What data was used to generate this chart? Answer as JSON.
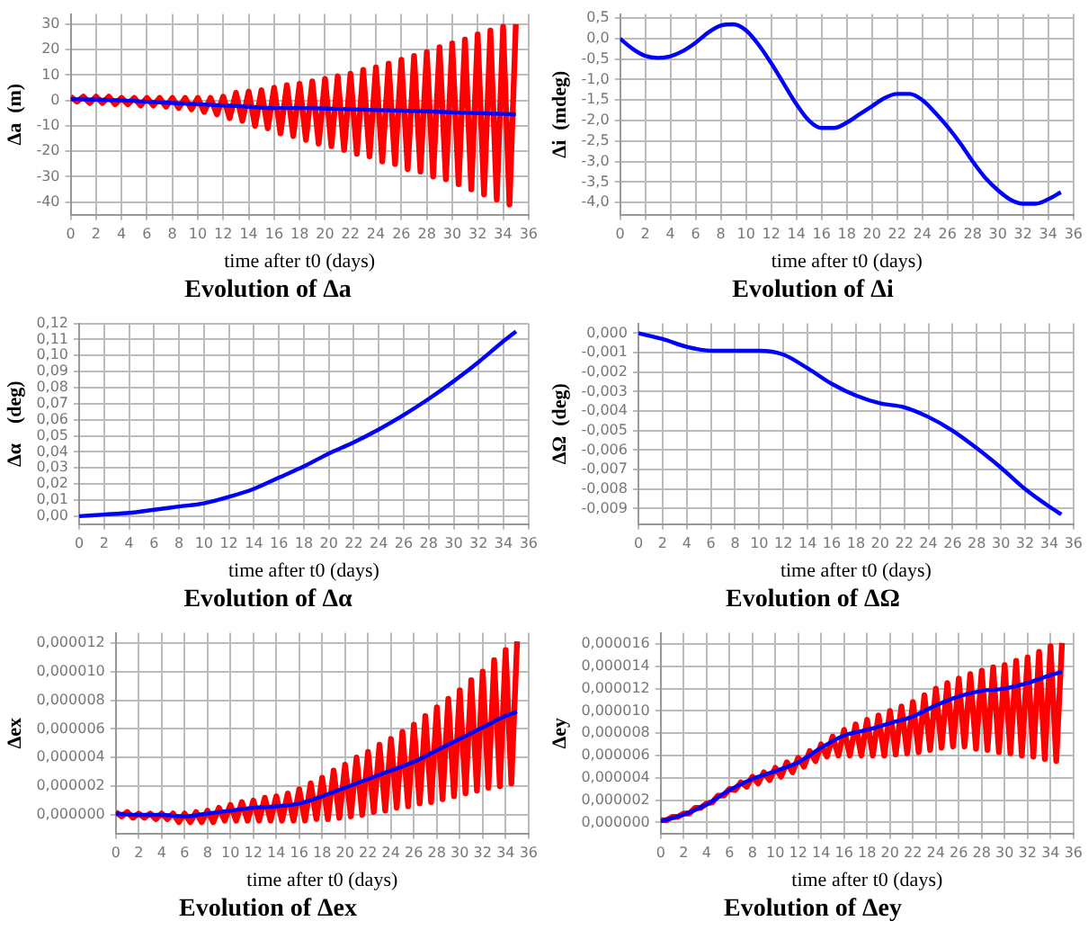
{
  "chart_data": [
    {
      "type": "line",
      "title": "Evolution of Δa",
      "xlabel": "time after t0 (days)",
      "ylabel": "Δa  (m)",
      "grid": true,
      "legend": false,
      "marker": "none",
      "x": [
        0,
        2,
        4,
        6,
        8,
        10,
        12,
        13,
        14,
        16,
        18,
        20,
        22,
        24,
        26,
        28,
        30,
        32,
        34,
        35
      ],
      "series": [
        {
          "color": "#0000ff",
          "values": [
            0.5,
            0.3,
            0,
            -0.5,
            -1,
            -1.5,
            -2,
            -2.2,
            -2.5,
            -3,
            -3,
            -3.2,
            -3.5,
            -3.8,
            -4,
            -4.3,
            -4.7,
            -5,
            -5.3,
            -5.5
          ]
        },
        {
          "color": "#ff0000",
          "x": [
            0,
            0.5,
            1,
            1.5,
            2,
            2.5,
            3,
            3.5,
            4,
            4.5,
            5,
            5.5,
            6,
            6.5,
            7,
            7.5,
            8,
            8.5,
            9,
            9.5,
            10,
            10.5,
            11,
            11.5,
            12,
            12.5,
            13,
            13.5,
            14,
            14.5,
            15,
            15.5,
            16,
            16.5,
            17,
            17.5,
            18,
            18.5,
            19,
            19.5,
            20,
            20.5,
            21,
            21.5,
            22,
            22.5,
            23,
            23.5,
            24,
            24.5,
            25,
            25.5,
            26,
            26.5,
            27,
            27.5,
            28,
            28.5,
            29,
            29.5,
            30,
            30.5,
            31,
            31.5,
            32,
            32.5,
            33,
            33.5,
            34,
            34.5,
            35
          ],
          "values": [
            1.5,
            -0.5,
            1.5,
            -1,
            1.5,
            -1,
            1.5,
            -1.5,
            1,
            -1.5,
            1,
            -2,
            1,
            -2,
            1,
            -2.5,
            1,
            -3,
            1,
            -3.5,
            1,
            -4.5,
            1,
            -5.5,
            1.5,
            -7,
            3,
            -8,
            3.5,
            -10,
            4,
            -11,
            5,
            -13,
            6,
            -14,
            6.5,
            -15.5,
            7.5,
            -17,
            8.5,
            -18,
            9.5,
            -19.5,
            10.5,
            -21,
            12,
            -22,
            13,
            -24,
            14.5,
            -25,
            16,
            -27,
            17.5,
            -28,
            19,
            -30,
            21,
            -31,
            22.5,
            -33,
            24,
            -35,
            26,
            -37,
            27.5,
            -39,
            29,
            -41,
            30
          ]
        }
      ],
      "xlim": [
        0,
        36
      ],
      "xticks": [
        0,
        2,
        4,
        6,
        8,
        10,
        12,
        14,
        16,
        18,
        20,
        22,
        24,
        26,
        28,
        30,
        32,
        34,
        36
      ],
      "ylim": [
        -45,
        34
      ],
      "yticks": [
        -40,
        -30,
        -20,
        -10,
        0,
        10,
        20,
        30
      ]
    },
    {
      "type": "line",
      "title": "Evolution of Δi",
      "xlabel": "time after t0 (days)",
      "ylabel": "Δi  (mdeg)",
      "grid": true,
      "legend": false,
      "marker": "none",
      "x": [
        0,
        1,
        2,
        3,
        4,
        5,
        6,
        7,
        8,
        9,
        10,
        11,
        12,
        13,
        14,
        15,
        16,
        17,
        18,
        19,
        20,
        21,
        22,
        23,
        24,
        25,
        26,
        27,
        28,
        29,
        30,
        31,
        32,
        33,
        34,
        35
      ],
      "series": [
        {
          "color": "#0000ff",
          "values": [
            0,
            -0.25,
            -0.42,
            -0.47,
            -0.43,
            -0.3,
            -0.1,
            0.15,
            0.32,
            0.35,
            0.2,
            -0.15,
            -0.6,
            -1.1,
            -1.6,
            -2.0,
            -2.18,
            -2.18,
            -2.05,
            -1.85,
            -1.65,
            -1.45,
            -1.35,
            -1.35,
            -1.5,
            -1.8,
            -2.15,
            -2.55,
            -3.0,
            -3.4,
            -3.7,
            -3.93,
            -4.03,
            -4.03,
            -3.92,
            -3.75
          ]
        }
      ],
      "xlim": [
        0,
        36
      ],
      "xticks": [
        0,
        2,
        4,
        6,
        8,
        10,
        12,
        14,
        16,
        18,
        20,
        22,
        24,
        26,
        28,
        30,
        32,
        34,
        36
      ],
      "ylim": [
        -4.3,
        0.6
      ],
      "yticks": [
        {
          "value": -4,
          "label": "-4,0"
        },
        {
          "value": -3.5,
          "label": "-3,5"
        },
        {
          "value": -3,
          "label": "-3,0"
        },
        {
          "value": -2.5,
          "label": "-2,5"
        },
        {
          "value": -2,
          "label": "-2,0"
        },
        {
          "value": -1.5,
          "label": "-1,5"
        },
        {
          "value": -1,
          "label": "-1,0"
        },
        {
          "value": -0.5,
          "label": "-0,5"
        },
        {
          "value": 0,
          "label": "0,0"
        },
        {
          "value": 0.5,
          "label": "0,5"
        }
      ]
    },
    {
      "type": "line",
      "title": "Evolution of Δα",
      "xlabel": "time after t0 (days)",
      "ylabel": "Δα    (deg)",
      "grid": true,
      "legend": false,
      "marker": "none",
      "x": [
        0,
        2,
        4,
        6,
        8,
        10,
        12,
        14,
        16,
        18,
        20,
        22,
        24,
        26,
        28,
        30,
        32,
        34,
        35
      ],
      "series": [
        {
          "color": "#0000ff",
          "values": [
            0,
            0.001,
            0.002,
            0.004,
            0.006,
            0.008,
            0.012,
            0.017,
            0.024,
            0.031,
            0.039,
            0.046,
            0.054,
            0.063,
            0.073,
            0.084,
            0.096,
            0.109,
            0.115
          ]
        }
      ],
      "xlim": [
        0,
        36
      ],
      "xticks": [
        0,
        2,
        4,
        6,
        8,
        10,
        12,
        14,
        16,
        18,
        20,
        22,
        24,
        26,
        28,
        30,
        32,
        34,
        36
      ],
      "ylim": [
        -0.005,
        0.12
      ],
      "yticks": [
        {
          "value": 0,
          "label": "0,00"
        },
        {
          "value": 0.01,
          "label": "0,01"
        },
        {
          "value": 0.02,
          "label": "0,02"
        },
        {
          "value": 0.03,
          "label": "0,03"
        },
        {
          "value": 0.04,
          "label": "0,04"
        },
        {
          "value": 0.05,
          "label": "0,05"
        },
        {
          "value": 0.06,
          "label": "0,06"
        },
        {
          "value": 0.07,
          "label": "0,07"
        },
        {
          "value": 0.08,
          "label": "0,08"
        },
        {
          "value": 0.09,
          "label": "0,09"
        },
        {
          "value": 0.1,
          "label": "0,10"
        },
        {
          "value": 0.11,
          "label": "0,11"
        },
        {
          "value": 0.12,
          "label": "0,12"
        }
      ]
    },
    {
      "type": "line",
      "title": "Evolution of ΔΩ",
      "xlabel": "time after t0 (days)",
      "ylabel": "ΔΩ  (deg)",
      "grid": true,
      "legend": false,
      "marker": "none",
      "x": [
        0,
        2,
        4,
        6,
        8,
        10,
        12,
        14,
        16,
        18,
        20,
        22,
        24,
        26,
        28,
        30,
        32,
        34,
        35
      ],
      "series": [
        {
          "color": "#0000ff",
          "values": [
            0,
            -0.0003,
            -0.0007,
            -0.0009,
            -0.0009,
            -0.0009,
            -0.0011,
            -0.0018,
            -0.0026,
            -0.0032,
            -0.0036,
            -0.0038,
            -0.0043,
            -0.005,
            -0.0059,
            -0.0069,
            -0.008,
            -0.0089,
            -0.0093
          ]
        }
      ],
      "xlim": [
        0,
        36
      ],
      "xticks": [
        0,
        2,
        4,
        6,
        8,
        10,
        12,
        14,
        16,
        18,
        20,
        22,
        24,
        26,
        28,
        30,
        32,
        34,
        36
      ],
      "ylim": [
        -0.0098,
        0.0005
      ],
      "yticks": [
        {
          "value": -0.009,
          "label": "-0,009"
        },
        {
          "value": -0.008,
          "label": "-0,008"
        },
        {
          "value": -0.007,
          "label": "-0,007"
        },
        {
          "value": -0.006,
          "label": "-0,006"
        },
        {
          "value": -0.005,
          "label": "-0,005"
        },
        {
          "value": -0.004,
          "label": "-0,004"
        },
        {
          "value": -0.003,
          "label": "-0,003"
        },
        {
          "value": -0.002,
          "label": "-0,002"
        },
        {
          "value": -0.001,
          "label": "-0,001"
        },
        {
          "value": 0,
          "label": "0,000"
        }
      ]
    },
    {
      "type": "line",
      "title": "Evolution of Δex",
      "xlabel": "time after t0 (days)",
      "ylabel": "Δex",
      "grid": true,
      "legend": false,
      "marker": "none",
      "x": [
        0,
        2,
        4,
        6,
        8,
        10,
        12,
        14,
        16,
        18,
        20,
        22,
        24,
        26,
        28,
        30,
        32,
        34,
        35
      ],
      "series": [
        {
          "color": "#0000ff",
          "values": [
            1e-07,
            0,
            0,
            -1e-07,
            1e-07,
            3e-07,
            5e-07,
            6e-07,
            8e-07,
            1.3e-06,
            1.9e-06,
            2.5e-06,
            3.1e-06,
            3.7e-06,
            4.5e-06,
            5.3e-06,
            6.1e-06,
            6.9e-06,
            7.2e-06
          ]
        },
        {
          "color": "#ff0000",
          "x": [
            0,
            0.5,
            1,
            1.5,
            2,
            2.5,
            3,
            3.5,
            4,
            4.5,
            5,
            5.5,
            6,
            6.5,
            7,
            7.5,
            8,
            8.5,
            9,
            9.5,
            10,
            10.5,
            11,
            11.5,
            12,
            12.5,
            13,
            13.5,
            14,
            14.5,
            15,
            15.5,
            16,
            16.5,
            17,
            17.5,
            18,
            18.5,
            19,
            19.5,
            20,
            20.5,
            21,
            21.5,
            22,
            22.5,
            23,
            23.5,
            24,
            24.5,
            25,
            25.5,
            26,
            26.5,
            27,
            27.5,
            28,
            28.5,
            29,
            29.5,
            30,
            30.5,
            31,
            31.5,
            32,
            32.5,
            33,
            33.5,
            34,
            34.5,
            35
          ],
          "values": [
            2e-07,
            -1e-07,
            2e-07,
            -2e-07,
            1e-07,
            -2e-07,
            1e-07,
            -3e-07,
            1e-07,
            -3e-07,
            1e-07,
            -5e-07,
            1e-07,
            -5e-07,
            2e-07,
            -5e-07,
            3e-07,
            -5e-07,
            5e-07,
            -4e-07,
            7e-07,
            -4e-07,
            9e-07,
            -4e-07,
            1e-06,
            -4e-07,
            1.2e-06,
            -4e-07,
            1.3e-06,
            -4e-07,
            1.5e-06,
            -4e-07,
            1.8e-06,
            -4e-07,
            2.2e-06,
            -3e-07,
            2.6e-06,
            -3e-07,
            3.1e-06,
            -2e-07,
            3.5e-06,
            -1e-07,
            4e-06,
            0,
            4.4e-06,
            2e-07,
            4.9e-06,
            3e-07,
            5.3e-06,
            5e-07,
            5.8e-06,
            6e-07,
            6.3e-06,
            8e-07,
            6.9e-06,
            9e-07,
            7.5e-06,
            1.1e-06,
            8.1e-06,
            1.3e-06,
            8.7e-06,
            1.5e-06,
            9.4e-06,
            1.7e-06,
            1e-05,
            1.9e-06,
            1.08e-05,
            2e-06,
            1.15e-05,
            2.2e-06,
            1.21e-05
          ]
        }
      ],
      "xlim": [
        0,
        36
      ],
      "xticks": [
        0,
        2,
        4,
        6,
        8,
        10,
        12,
        14,
        16,
        18,
        20,
        22,
        24,
        26,
        28,
        30,
        32,
        34,
        36
      ],
      "ylim": [
        -1.3e-06,
        1.27e-05
      ],
      "yticks": [
        {
          "value": 0,
          "label": "0,000000"
        },
        {
          "value": 2e-06,
          "label": "0,000002"
        },
        {
          "value": 4e-06,
          "label": "0,000004"
        },
        {
          "value": 6e-06,
          "label": "0,000006"
        },
        {
          "value": 8e-06,
          "label": "0,000008"
        },
        {
          "value": 1e-05,
          "label": "0,000010"
        },
        {
          "value": 1.2e-05,
          "label": "0,000012"
        }
      ]
    },
    {
      "type": "line",
      "title": "Evolution of Δey",
      "xlabel": "time after t0 (days)",
      "ylabel": "Δey",
      "grid": true,
      "legend": false,
      "marker": "none",
      "x": [
        0,
        2,
        4,
        6,
        8,
        10,
        12,
        14,
        16,
        18,
        20,
        22,
        24,
        26,
        28,
        30,
        32,
        34,
        35
      ],
      "series": [
        {
          "color": "#0000ff",
          "values": [
            1e-07,
            7e-07,
            1.6e-06,
            2.9e-06,
            3.9e-06,
            4.6e-06,
            5.4e-06,
            6.7e-06,
            7.8e-06,
            8.3e-06,
            8.9e-06,
            9.5e-06,
            1.05e-05,
            1.13e-05,
            1.18e-05,
            1.2e-05,
            1.25e-05,
            1.32e-05,
            1.35e-05
          ]
        },
        {
          "color": "#ff0000",
          "x": [
            0,
            0.5,
            1,
            1.5,
            2,
            2.5,
            3,
            3.5,
            4,
            4.5,
            5,
            5.5,
            6,
            6.5,
            7,
            7.5,
            8,
            8.5,
            9,
            9.5,
            10,
            10.5,
            11,
            11.5,
            12,
            12.5,
            13,
            13.5,
            14,
            14.5,
            15,
            15.5,
            16,
            16.5,
            17,
            17.5,
            18,
            18.5,
            19,
            19.5,
            20,
            20.5,
            21,
            21.5,
            22,
            22.5,
            23,
            23.5,
            24,
            24.5,
            25,
            25.5,
            26,
            26.5,
            27,
            27.5,
            28,
            28.5,
            29,
            29.5,
            30,
            30.5,
            31,
            31.5,
            32,
            32.5,
            33,
            33.5,
            34,
            34.5,
            35
          ],
          "values": [
            2e-07,
            2e-07,
            5e-07,
            5e-07,
            8e-07,
            8e-07,
            1.3e-06,
            1.3e-06,
            1.7e-06,
            1.8e-06,
            2.4e-06,
            2.4e-06,
            3e-06,
            2.9e-06,
            3.6e-06,
            3.2e-06,
            4.1e-06,
            3.5e-06,
            4.5e-06,
            3.8e-06,
            4.9e-06,
            4.1e-06,
            5.4e-06,
            4.5e-06,
            5.8e-06,
            5e-06,
            6.4e-06,
            5.5e-06,
            7e-06,
            5.9e-06,
            7.7e-06,
            6e-06,
            8.3e-06,
            6e-06,
            8.8e-06,
            6e-06,
            9.2e-06,
            6e-06,
            9.6e-06,
            6e-06,
            1e-05,
            6.1e-06,
            1.04e-05,
            6.2e-06,
            1.08e-05,
            6.3e-06,
            1.14e-05,
            6.5e-06,
            1.2e-05,
            6.7e-06,
            1.25e-05,
            6.8e-06,
            1.29e-05,
            6.8e-06,
            1.33e-05,
            6.6e-06,
            1.36e-05,
            6.5e-06,
            1.39e-05,
            6.3e-06,
            1.41e-05,
            6.2e-06,
            1.45e-05,
            6e-06,
            1.48e-05,
            5.9e-06,
            1.53e-05,
            5.7e-06,
            1.58e-05,
            5.5e-06,
            1.61e-05
          ]
        }
      ],
      "xlim": [
        0,
        36
      ],
      "xticks": [
        0,
        2,
        4,
        6,
        8,
        10,
        12,
        14,
        16,
        18,
        20,
        22,
        24,
        26,
        28,
        30,
        32,
        34,
        36
      ],
      "ylim": [
        -1e-06,
        1.7e-05
      ],
      "yticks": [
        {
          "value": 0,
          "label": "0,000000"
        },
        {
          "value": 2e-06,
          "label": "0,000002"
        },
        {
          "value": 4e-06,
          "label": "0,000004"
        },
        {
          "value": 6e-06,
          "label": "0,000006"
        },
        {
          "value": 8e-06,
          "label": "0,000008"
        },
        {
          "value": 1e-05,
          "label": "0,000010"
        },
        {
          "value": 1.2e-05,
          "label": "0,000012"
        },
        {
          "value": 1.4e-05,
          "label": "0,000014"
        },
        {
          "value": 1.6e-05,
          "label": "0,000016"
        }
      ]
    }
  ]
}
